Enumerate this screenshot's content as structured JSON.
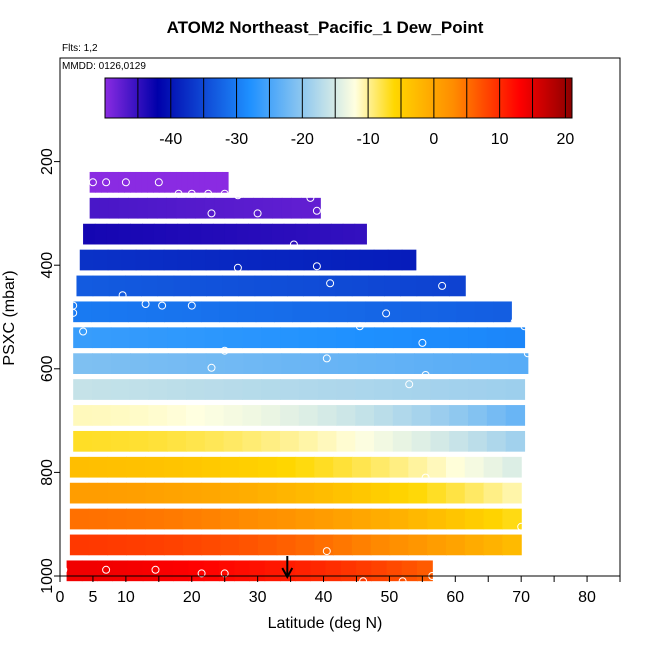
{
  "chart_data": {
    "type": "heatmap",
    "title": "ATOM2 Northeast_Pacific_1 Dew_Point",
    "annotations": [
      "Flts: 1,2",
      "MMDD: 0126,0129"
    ],
    "xlabel": "Latitude (deg N)",
    "ylabel": "PSXC (mbar)",
    "xlim": [
      0,
      85
    ],
    "ylim": [
      1000,
      0
    ],
    "x_ticks": [
      0,
      5,
      10,
      20,
      30,
      40,
      50,
      60,
      70,
      80
    ],
    "x_minor_ticks": [
      15,
      25,
      35,
      45,
      55,
      65,
      75,
      85
    ],
    "y_ticks": [
      200,
      400,
      600,
      800,
      1000
    ],
    "colorbar": {
      "range": [
        -50,
        21
      ],
      "ticks": [
        -40,
        -30,
        -20,
        -10,
        0,
        10,
        20
      ],
      "colors": [
        "#8a2be2",
        "#0000aa",
        "#1e90ff",
        "#ffffe0",
        "#ffd700",
        "#ff8c00",
        "#ff0000",
        "#8b0000"
      ],
      "color_stops": [
        -50,
        -42,
        -28,
        -12,
        -6,
        3,
        13,
        21
      ]
    },
    "bands": [
      {
        "p": 240,
        "lat_min": 4.5,
        "lat_max": 25.5,
        "dew": -50
      },
      {
        "p": 290,
        "lat_min": 4.5,
        "lat_max": 39.5,
        "dew": -46
      },
      {
        "p": 340,
        "lat_min": 3.5,
        "lat_max": 46.5,
        "dew": -43
      },
      {
        "p": 390,
        "lat_min": 3.0,
        "lat_max": 54.0,
        "dew": -37
      },
      {
        "p": 440,
        "lat_min": 2.5,
        "lat_max": 61.5,
        "dew": -33
      },
      {
        "p": 490,
        "lat_min": 2.0,
        "lat_max": 68.5,
        "dew": -30
      },
      {
        "p": 540,
        "lat_min": 2.0,
        "lat_max": 70.5,
        "dew": -26
      },
      {
        "p": 590,
        "lat_min": 2.0,
        "lat_max": 71.0,
        "dew": -21
      },
      {
        "p": 640,
        "lat_min": 2.0,
        "lat_max": 70.5,
        "dew": -16
      },
      {
        "p": 690,
        "lat_min": 2.0,
        "lat_max": 70.5,
        "dew": -11
      },
      {
        "p": 740,
        "lat_min": 2.0,
        "lat_max": 70.5,
        "dew": -7
      },
      {
        "p": 790,
        "lat_min": 1.5,
        "lat_max": 70.0,
        "dew": -3
      },
      {
        "p": 840,
        "lat_min": 1.5,
        "lat_max": 70.0,
        "dew": 1
      },
      {
        "p": 890,
        "lat_min": 1.5,
        "lat_max": 70.0,
        "dew": 5
      },
      {
        "p": 940,
        "lat_min": 1.5,
        "lat_max": 70.0,
        "dew": 9
      },
      {
        "p": 990,
        "lat_min": 1.0,
        "lat_max": 56.5,
        "dew": 14
      }
    ],
    "points": [
      [
        5,
        240
      ],
      [
        7,
        240
      ],
      [
        10,
        240
      ],
      [
        15,
        240
      ],
      [
        18,
        262
      ],
      [
        20,
        262
      ],
      [
        22.5,
        262
      ],
      [
        25,
        262
      ],
      [
        27,
        265
      ],
      [
        23,
        300
      ],
      [
        30,
        300
      ],
      [
        38,
        270
      ],
      [
        39,
        295
      ],
      [
        35.5,
        360
      ],
      [
        27,
        405
      ],
      [
        39,
        402
      ],
      [
        41,
        435
      ],
      [
        58,
        440
      ],
      [
        9.5,
        458
      ],
      [
        13,
        475
      ],
      [
        15.5,
        478
      ],
      [
        20,
        478
      ],
      [
        2,
        478
      ],
      [
        2,
        492
      ],
      [
        49.5,
        493
      ],
      [
        45.5,
        518
      ],
      [
        69,
        510
      ],
      [
        70.5,
        518
      ],
      [
        55,
        550
      ],
      [
        3.5,
        528
      ],
      [
        25,
        565
      ],
      [
        40.5,
        580
      ],
      [
        23,
        598
      ],
      [
        71,
        570
      ],
      [
        55.5,
        612
      ],
      [
        53,
        630
      ],
      [
        55.5,
        810
      ],
      [
        70,
        905
      ],
      [
        40.5,
        952
      ],
      [
        0.5,
        988
      ],
      [
        7,
        988
      ],
      [
        14.5,
        988
      ],
      [
        21.5,
        995
      ],
      [
        25,
        995
      ],
      [
        46,
        1010
      ],
      [
        52,
        1010
      ],
      [
        56.5,
        1000
      ]
    ],
    "marker_latitude": 34.5
  }
}
